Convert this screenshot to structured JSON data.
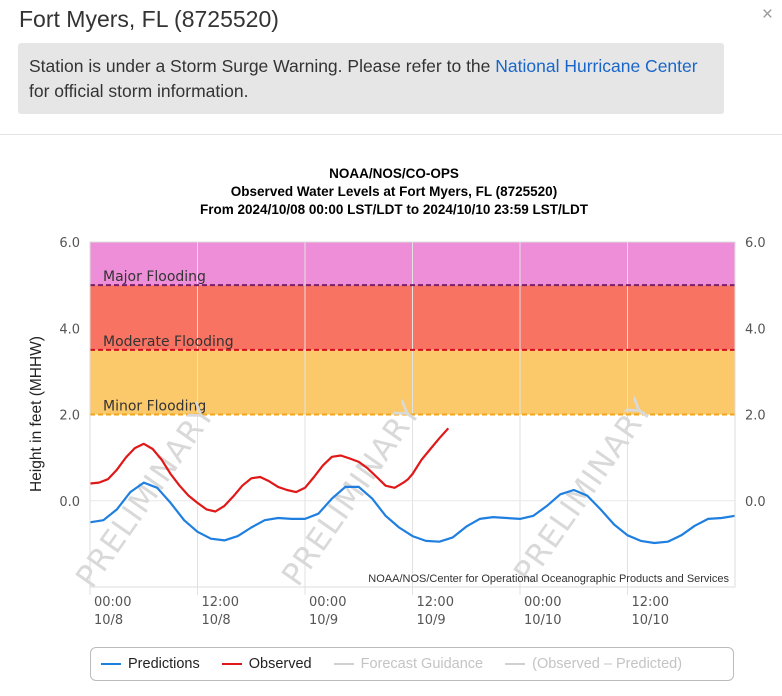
{
  "header": {
    "title": "Fort Myers, FL (8725520)",
    "close_icon": "×"
  },
  "alert": {
    "text_before": "Station is under a Storm Surge Warning. Please refer to the ",
    "link_text": "National Hurricane Center",
    "text_after": "for official storm information."
  },
  "chart_data": {
    "type": "line",
    "title": "NOAA/NOS/CO-OPS",
    "subtitle": "Observed Water Levels at Fort Myers, FL (8725520)",
    "subtitle2": "From 2024/10/08 00:00 LST/LDT to 2024/10/10 23:59 LST/LDT",
    "ylabel": "Height in feet (MHHW)",
    "ylim": [
      -2.0,
      6.0
    ],
    "yticks": [
      "6.0",
      "4.0",
      "2.0",
      "0.0"
    ],
    "xlim": [
      0,
      72
    ],
    "xticks": [
      {
        "x": 0,
        "time": "00:00",
        "date": "10/8"
      },
      {
        "x": 12,
        "time": "12:00",
        "date": "10/8"
      },
      {
        "x": 24,
        "time": "00:00",
        "date": "10/9"
      },
      {
        "x": 36,
        "time": "12:00",
        "date": "10/9"
      },
      {
        "x": 48,
        "time": "00:00",
        "date": "10/10"
      },
      {
        "x": 60,
        "time": "12:00",
        "date": "10/10"
      }
    ],
    "bands": [
      {
        "name": "Major Flooding",
        "from": 5.0,
        "to": 6.0,
        "color": "#ee8ed8",
        "line": "#7a1f6a"
      },
      {
        "name": "Moderate Flooding",
        "from": 3.5,
        "to": 5.0,
        "color": "#f97362",
        "line": "#d10f1f"
      },
      {
        "name": "Minor Flooding",
        "from": 2.0,
        "to": 3.5,
        "color": "#fcc96a",
        "line": "#f0a51a"
      }
    ],
    "series": [
      {
        "name": "Predictions",
        "color": "#1f7fe0",
        "x": [
          0,
          1.5,
          3,
          4.5,
          6,
          7.5,
          9,
          10.5,
          12,
          13.5,
          15,
          16.5,
          18,
          19.5,
          21,
          22.5,
          24,
          25.5,
          27,
          28.5,
          30,
          31.5,
          33,
          34.5,
          36,
          37.5,
          39,
          40.5,
          42,
          43.5,
          45,
          46.5,
          48,
          49.5,
          51,
          52.5,
          54,
          55.5,
          57,
          58.5,
          60,
          61.5,
          63,
          64.5,
          66,
          67.5,
          69,
          70.5,
          72
        ],
        "y": [
          -0.5,
          -0.45,
          -0.2,
          0.2,
          0.42,
          0.3,
          -0.05,
          -0.45,
          -0.72,
          -0.88,
          -0.92,
          -0.82,
          -0.62,
          -0.45,
          -0.4,
          -0.42,
          -0.42,
          -0.3,
          0.05,
          0.32,
          0.32,
          0.05,
          -0.35,
          -0.62,
          -0.82,
          -0.93,
          -0.95,
          -0.85,
          -0.6,
          -0.42,
          -0.38,
          -0.4,
          -0.42,
          -0.35,
          -0.12,
          0.15,
          0.25,
          0.12,
          -0.2,
          -0.55,
          -0.8,
          -0.93,
          -0.98,
          -0.95,
          -0.8,
          -0.58,
          -0.42,
          -0.4,
          -0.35
        ]
      },
      {
        "name": "Observed",
        "color": "#e01818",
        "x": [
          0,
          1,
          2,
          3,
          4,
          5,
          6,
          7,
          8,
          9,
          10,
          11,
          12,
          13,
          14,
          15,
          16,
          17,
          18,
          19,
          20,
          21,
          22,
          23,
          24,
          25,
          26,
          27,
          28,
          29,
          30,
          31,
          32,
          33,
          34,
          35,
          35.5,
          36,
          37,
          38,
          39,
          40
        ],
        "y": [
          0.4,
          0.42,
          0.5,
          0.72,
          1.0,
          1.22,
          1.32,
          1.2,
          0.95,
          0.62,
          0.35,
          0.12,
          -0.05,
          -0.2,
          -0.25,
          -0.12,
          0.1,
          0.35,
          0.52,
          0.55,
          0.45,
          0.32,
          0.25,
          0.2,
          0.3,
          0.55,
          0.82,
          1.02,
          1.05,
          0.98,
          0.9,
          0.75,
          0.55,
          0.35,
          0.3,
          0.42,
          0.5,
          0.62,
          0.95,
          1.2,
          1.45,
          1.68
        ]
      }
    ],
    "watermark": "PRELIMINARY",
    "credit": "NOAA/NOS/Center for Operational Oceanographic Products and Services",
    "legend": [
      {
        "label": "Predictions",
        "color": "#1f7fe0",
        "active": true
      },
      {
        "label": "Observed",
        "color": "#e01818",
        "active": true
      },
      {
        "label": "Forecast Guidance",
        "color": "#cccccc",
        "active": false
      },
      {
        "label": "(Observed – Predicted)",
        "color": "#cccccc",
        "active": false
      }
    ]
  }
}
